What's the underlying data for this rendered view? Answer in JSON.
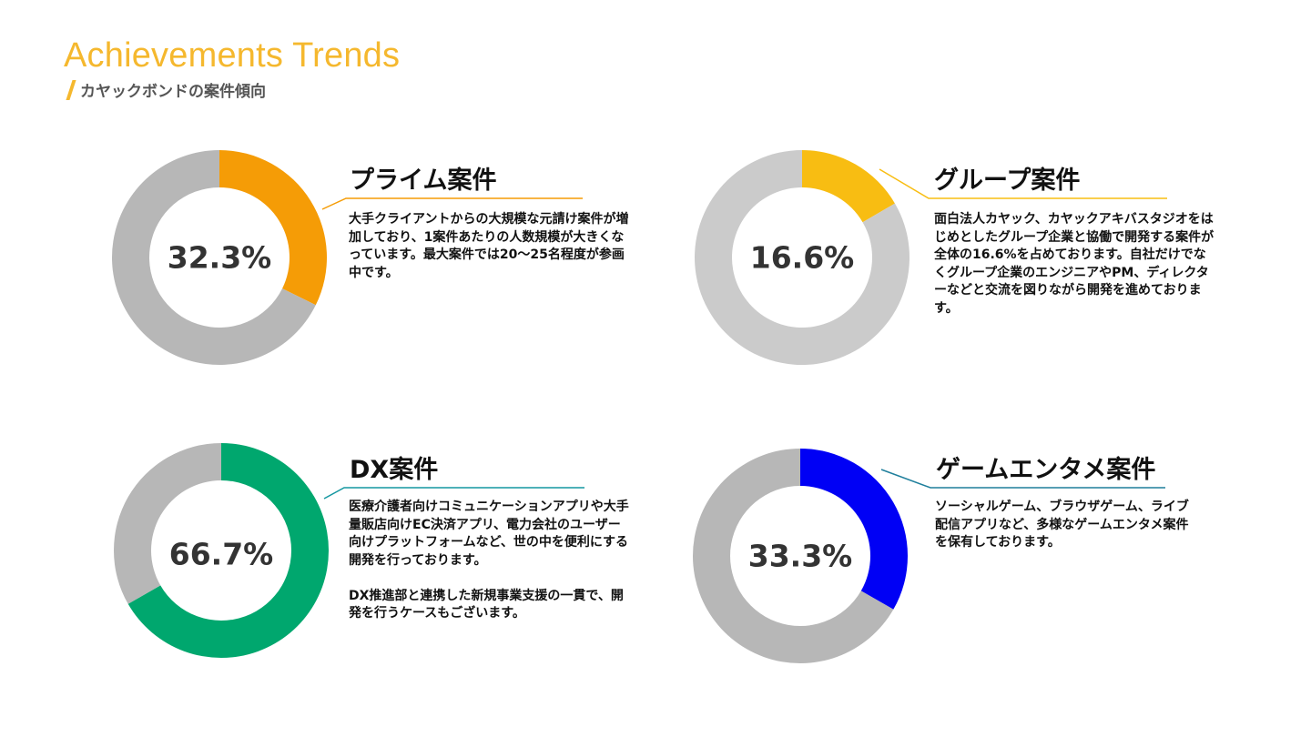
{
  "header": {
    "title": "Achievements Trends",
    "subtitle": "カヤックボンドの案件傾向"
  },
  "chart_data": [
    {
      "type": "pie",
      "title": "プライム案件",
      "center_label": "32.3%",
      "values": [
        32.3,
        67.7
      ],
      "colors": [
        "#f59c06",
        "#b7b7b7"
      ],
      "description": "大手クライアントからの大規模な元請け案件が増加しており、1案件あたりの人数規模が大きくなっています。最大案件では20〜25名程度が参画中です。",
      "accent": "#f59c06"
    },
    {
      "type": "pie",
      "title": "グループ案件",
      "center_label": "16.6%",
      "values": [
        16.6,
        83.4
      ],
      "colors": [
        "#f8bd12",
        "#cbcbcb"
      ],
      "description": "面白法人カヤック、カヤックアキバスタジオをはじめとしたグループ企業と協働で開発する案件が全体の16.6%を占めております。自社だけでなくグループ企業のエンジニアやPM、ディレクターなどと交流を図りながら開発を進めております。",
      "accent": "#f8bd12"
    },
    {
      "type": "pie",
      "title": "DX案件",
      "center_label": "66.7%",
      "values": [
        66.7,
        33.3
      ],
      "colors": [
        "#00a76e",
        "#b7b7b7"
      ],
      "description": "医療介護者向けコミュニケーションアプリや大手量販店向けEC決済アプリ、電力会社のユーザー向けプラットフォームなど、世の中を便利にする開発を行っております。\n\nDX推進部と連携した新規事業支援の一貫で、開発を行うケースもございます。",
      "accent": "#1497a0"
    },
    {
      "type": "pie",
      "title": "ゲームエンタメ案件",
      "center_label": "33.3%",
      "values": [
        33.3,
        66.7
      ],
      "colors": [
        "#0000f5",
        "#b7b7b7"
      ],
      "description": "ソーシャルゲーム、ブラウザゲーム、ライブ配信アプリなど、多様なゲームエンタメ案件を保有しております。",
      "accent": "#1f7f9c"
    }
  ]
}
